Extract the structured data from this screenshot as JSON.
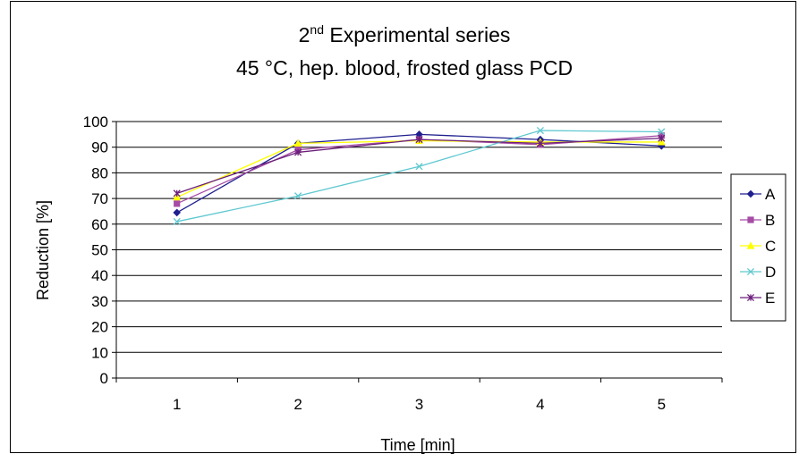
{
  "chart_data": {
    "type": "line",
    "title": {
      "line1_prefix": "2",
      "line1_superscript": "nd",
      "line1_rest": " Experimental series",
      "line2": "45 °C, hep. blood, frosted glass PCD"
    },
    "xlabel": "Time [min]",
    "ylabel": "Reduction [%]",
    "categories": [
      "1",
      "2",
      "3",
      "4",
      "5"
    ],
    "ylim": [
      0,
      100
    ],
    "yticks": [
      0,
      10,
      20,
      30,
      40,
      50,
      60,
      70,
      80,
      90,
      100
    ],
    "grid": true,
    "legend_position": "right",
    "series": [
      {
        "name": "A",
        "color": "#1f1f8f",
        "marker": "diamond",
        "values": [
          64.5,
          91.5,
          95.0,
          93.0,
          90.5
        ]
      },
      {
        "name": "B",
        "color": "#a64ca6",
        "marker": "square",
        "values": [
          68.0,
          89.0,
          93.0,
          91.0,
          94.5
        ]
      },
      {
        "name": "C",
        "color": "#ffff00",
        "marker": "triangle",
        "values": [
          70.5,
          91.5,
          92.5,
          92.0,
          92.0
        ]
      },
      {
        "name": "D",
        "color": "#5fc8d0",
        "marker": "x",
        "values": [
          61.0,
          71.0,
          82.5,
          96.5,
          96.0
        ]
      },
      {
        "name": "E",
        "color": "#6b1f7a",
        "marker": "star",
        "values": [
          72.0,
          88.0,
          93.0,
          91.5,
          93.5
        ]
      }
    ]
  }
}
